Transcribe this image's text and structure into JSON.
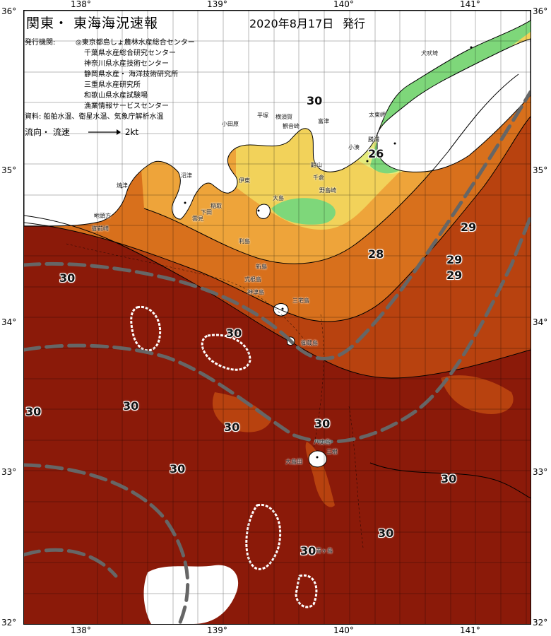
{
  "header": {
    "title": "関東・ 東海海況速報",
    "date": "2020年8月17日",
    "published": "発行"
  },
  "info": {
    "issuers_label": "発行機関:",
    "issuers": [
      "◎東京都島しょ農林水産総合センター",
      "千葉県水産総合研究センター",
      "神奈川県水産技術センター",
      "静岡県水産・ 海洋技術研究所",
      "三重県水産研究所",
      "和歌山県水産試験場",
      "漁業情報サービスセンター"
    ],
    "sources": "資料: 船舶水温、衛星水温、気象庁解析水温",
    "legend_label": "流向・ 流速",
    "legend_value": "2kt"
  },
  "axes": {
    "lon_ticks": [
      "138°",
      "139°",
      "140°",
      "141°"
    ],
    "lat_ticks": [
      "36°",
      "35°",
      "34°",
      "33°",
      "32°"
    ]
  },
  "isotherm_labels": [
    "30",
    "26",
    "29",
    "28",
    "29",
    "29",
    "30",
    "30",
    "30",
    "30",
    "30",
    "30",
    "30",
    "30",
    "30",
    "30"
  ],
  "place_names": [
    "犬吠埼",
    "太東岬",
    "勝浦",
    "小湊",
    "館山",
    "千倉",
    "野島崎",
    "富津",
    "観音崎",
    "横須賀",
    "平塚",
    "小田原",
    "伊東",
    "大島",
    "稲取",
    "下田",
    "雲見",
    "沼津",
    "焼津",
    "地頭方",
    "御前崎",
    "利島",
    "新島",
    "式根島",
    "神津島",
    "三宅島",
    "御蔵島",
    "八丈島",
    "青ヶ島",
    "大島田",
    "三根"
  ],
  "colors": {
    "sea_30": "#8b1a09",
    "sea_29": "#b8420f",
    "sea_28": "#d8701c",
    "sea_27": "#eea43a",
    "sea_26": "#f2d25a",
    "sea_25": "#e6ec7c",
    "sea_cool": "#7ed77a",
    "land": "#ffffff",
    "current": "#666666"
  }
}
